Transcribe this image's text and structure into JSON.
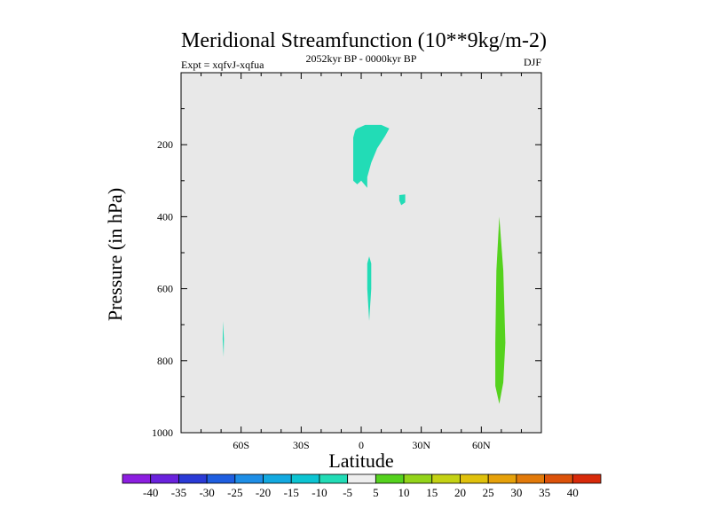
{
  "chart_data": {
    "type": "heatmap",
    "title": "Meridional Streamfunction (10**9kg/m-2)",
    "subtitle_left": "Expt = xqfvJ-xqfua",
    "subtitle_center": "2052kyr BP - 0000kyr BP",
    "subtitle_right": "DJF",
    "xlabel": "Latitude",
    "ylabel": "Pressure (in hPa)",
    "xlim": [
      -90,
      90
    ],
    "ylim": [
      1000,
      0
    ],
    "x_ticks": [
      {
        "value": -60,
        "label": "60S"
      },
      {
        "value": -30,
        "label": "30S"
      },
      {
        "value": 0,
        "label": "0"
      },
      {
        "value": 30,
        "label": "30N"
      },
      {
        "value": 60,
        "label": "60N"
      }
    ],
    "y_ticks": [
      {
        "value": 200,
        "label": "200"
      },
      {
        "value": 400,
        "label": "400"
      },
      {
        "value": 600,
        "label": "600"
      },
      {
        "value": 800,
        "label": "800"
      },
      {
        "value": 1000,
        "label": "1000"
      }
    ],
    "background_color": "#e8e8e8",
    "colorbar": {
      "labels": [
        "-40",
        "-35",
        "-30",
        "-25",
        "-20",
        "-15",
        "-10",
        "-5",
        "5",
        "10",
        "15",
        "20",
        "25",
        "30",
        "35",
        "40"
      ],
      "colors": [
        "#8c1ee0",
        "#6a22dd",
        "#2a3ad6",
        "#1f5ee0",
        "#1e8ee6",
        "#13a9e0",
        "#0cc4d2",
        "#22dcb6",
        "#eeeeee",
        "#55d21e",
        "#93d41a",
        "#c4d214",
        "#e0c10c",
        "#e6a10a",
        "#e27a0a",
        "#dc520a",
        "#d82a0a"
      ]
    },
    "regions": [
      {
        "name": "cell-equator-upper",
        "color": "#22dcb6",
        "polygon": [
          [
            -2,
            155
          ],
          [
            2,
            145
          ],
          [
            10,
            145
          ],
          [
            14,
            155
          ],
          [
            12,
            175
          ],
          [
            8,
            210
          ],
          [
            5,
            250
          ],
          [
            3,
            290
          ],
          [
            3,
            320
          ],
          [
            0,
            300
          ],
          [
            -2,
            310
          ],
          [
            -4,
            300
          ],
          [
            -4,
            230
          ],
          [
            -4,
            180
          ],
          [
            -3,
            160
          ]
        ]
      },
      {
        "name": "cell-20n",
        "color": "#22dcb6",
        "polygon": [
          [
            19,
            340
          ],
          [
            22,
            338
          ],
          [
            22,
            360
          ],
          [
            20,
            368
          ],
          [
            19,
            355
          ]
        ]
      },
      {
        "name": "cell-equator-mid",
        "color": "#22dcb6",
        "polygon": [
          [
            4,
            510
          ],
          [
            5,
            530
          ],
          [
            5,
            600
          ],
          [
            4,
            690
          ],
          [
            3,
            600
          ],
          [
            3,
            530
          ]
        ]
      },
      {
        "name": "cell-70s",
        "color": "#22dcb6",
        "polygon": [
          [
            -69,
            690
          ],
          [
            -68.6,
            740
          ],
          [
            -68.7,
            790
          ],
          [
            -69.2,
            740
          ]
        ]
      },
      {
        "name": "cell-70n",
        "color": "#55d21e",
        "polygon": [
          [
            69,
            400
          ],
          [
            71,
            550
          ],
          [
            72,
            750
          ],
          [
            71,
            860
          ],
          [
            69,
            920
          ],
          [
            67,
            870
          ],
          [
            67,
            750
          ],
          [
            67.5,
            550
          ]
        ]
      }
    ]
  }
}
